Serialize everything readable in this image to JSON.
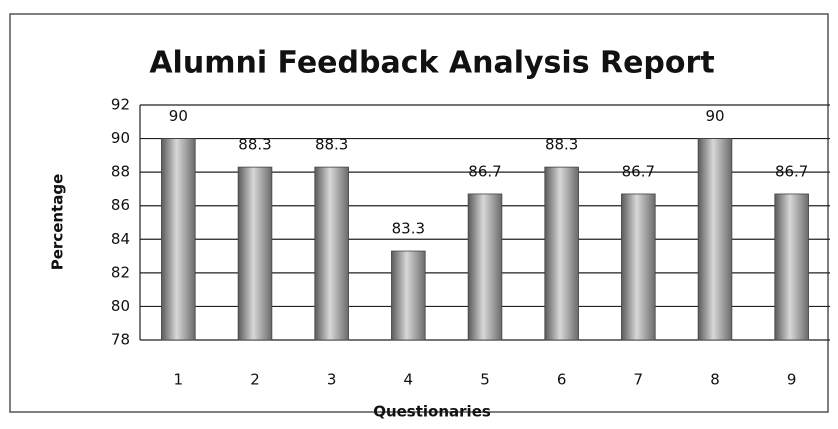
{
  "chart_data": {
    "type": "bar",
    "title": "Alumni Feedback Analysis Report",
    "x_label": "Questionaries",
    "y_label": "Percentage",
    "categories": [
      "1",
      "2",
      "3",
      "4",
      "5",
      "6",
      "7",
      "8",
      "9"
    ],
    "values": [
      90,
      88.3,
      88.3,
      83.3,
      86.7,
      88.3,
      86.7,
      90,
      86.7
    ],
    "color": "#8a8a8a",
    "ylim": [
      78,
      92
    ],
    "yticks": [
      78,
      80,
      82,
      84,
      86,
      88,
      90,
      92
    ],
    "grid": true
  }
}
